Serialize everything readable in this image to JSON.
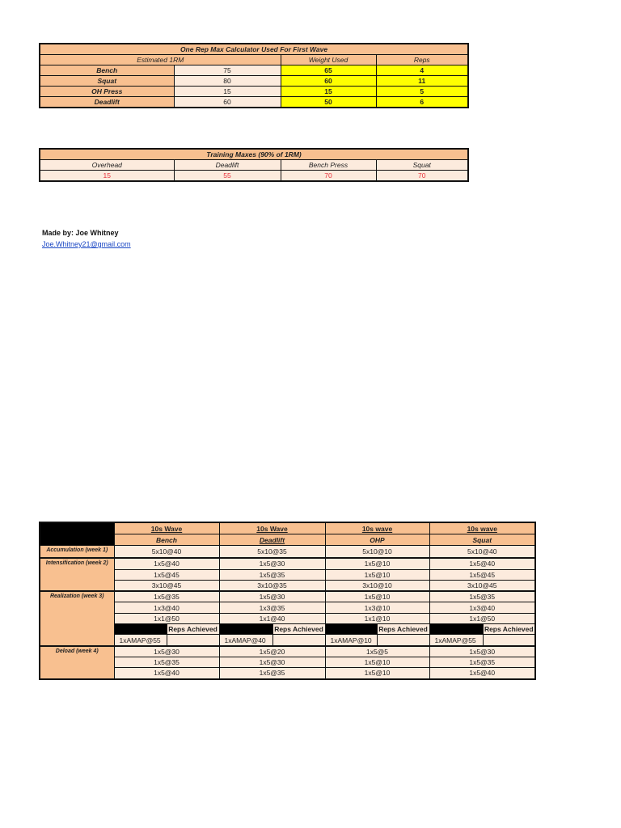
{
  "one_rm_table": {
    "title": "One Rep Max Calculator Used For First Wave",
    "headers": [
      "Estimated 1RM",
      "Weight Used",
      "Reps"
    ],
    "rows": [
      {
        "lift": "Bench",
        "estimated": "75",
        "weight": "65",
        "reps": "4"
      },
      {
        "lift": "Squat",
        "estimated": "80",
        "weight": "60",
        "reps": "11"
      },
      {
        "lift": "OH Press",
        "estimated": "15",
        "weight": "15",
        "reps": "5"
      },
      {
        "lift": "Deadlift",
        "estimated": "60",
        "weight": "50",
        "reps": "6"
      }
    ]
  },
  "training_maxes": {
    "title": "Training Maxes (90% of 1RM)",
    "headers": [
      "Overhead",
      "Deadlift",
      "Bench Press",
      "Squat"
    ],
    "values": [
      "15",
      "55",
      "70",
      "70"
    ]
  },
  "credits": {
    "made_by": "Made by: Joe Whitney",
    "email": "Joe.Whitney21@gmail.com"
  },
  "program": {
    "columns": [
      {
        "wave": "10s Wave",
        "lift": "Bench",
        "amap": "1xAMAP@55",
        "sets": [
          "5x10@40",
          "1x5@40",
          "1x5@45",
          "3x10@45",
          "1x5@35",
          "1x3@40",
          "1x1@50"
        ],
        "deload": [
          "1x5@30",
          "1x5@35",
          "1x5@40"
        ]
      },
      {
        "wave": "10s Wave",
        "lift": "Deadlift",
        "amap": "1xAMAP@40",
        "sets": [
          "5x10@35",
          "1x5@30",
          "1x5@35",
          "3x10@35",
          "1x5@30",
          "1x3@35",
          "1x1@40"
        ],
        "deload": [
          "1x5@20",
          "1x5@30",
          "1x5@35"
        ]
      },
      {
        "wave": "10s wave",
        "lift": "OHP",
        "amap": "1xAMAP@10",
        "sets": [
          "5x10@10",
          "1x5@10",
          "1x5@10",
          "3x10@10",
          "1x5@10",
          "1x3@10",
          "1x1@10"
        ],
        "deload": [
          "1x5@5",
          "1x5@10",
          "1x5@10"
        ]
      },
      {
        "wave": "10s wave",
        "lift": "Squat",
        "amap": "1xAMAP@55",
        "sets": [
          "5x10@40",
          "1x5@40",
          "1x5@45",
          "3x10@45",
          "1x5@35",
          "1x3@40",
          "1x1@50"
        ],
        "deload": [
          "1x5@30",
          "1x5@35",
          "1x5@40"
        ]
      }
    ],
    "phases": [
      "Accumulation (week 1)",
      "Intensification (week 2)",
      "Realization (week 3)",
      "Deload (week 4)"
    ],
    "reps_achieved_label": "Reps Achieved"
  },
  "colors": {
    "header": "#f8c090",
    "cell": "#fcebdd",
    "input": "#ffff00",
    "training_max_text": "#e8303a"
  }
}
